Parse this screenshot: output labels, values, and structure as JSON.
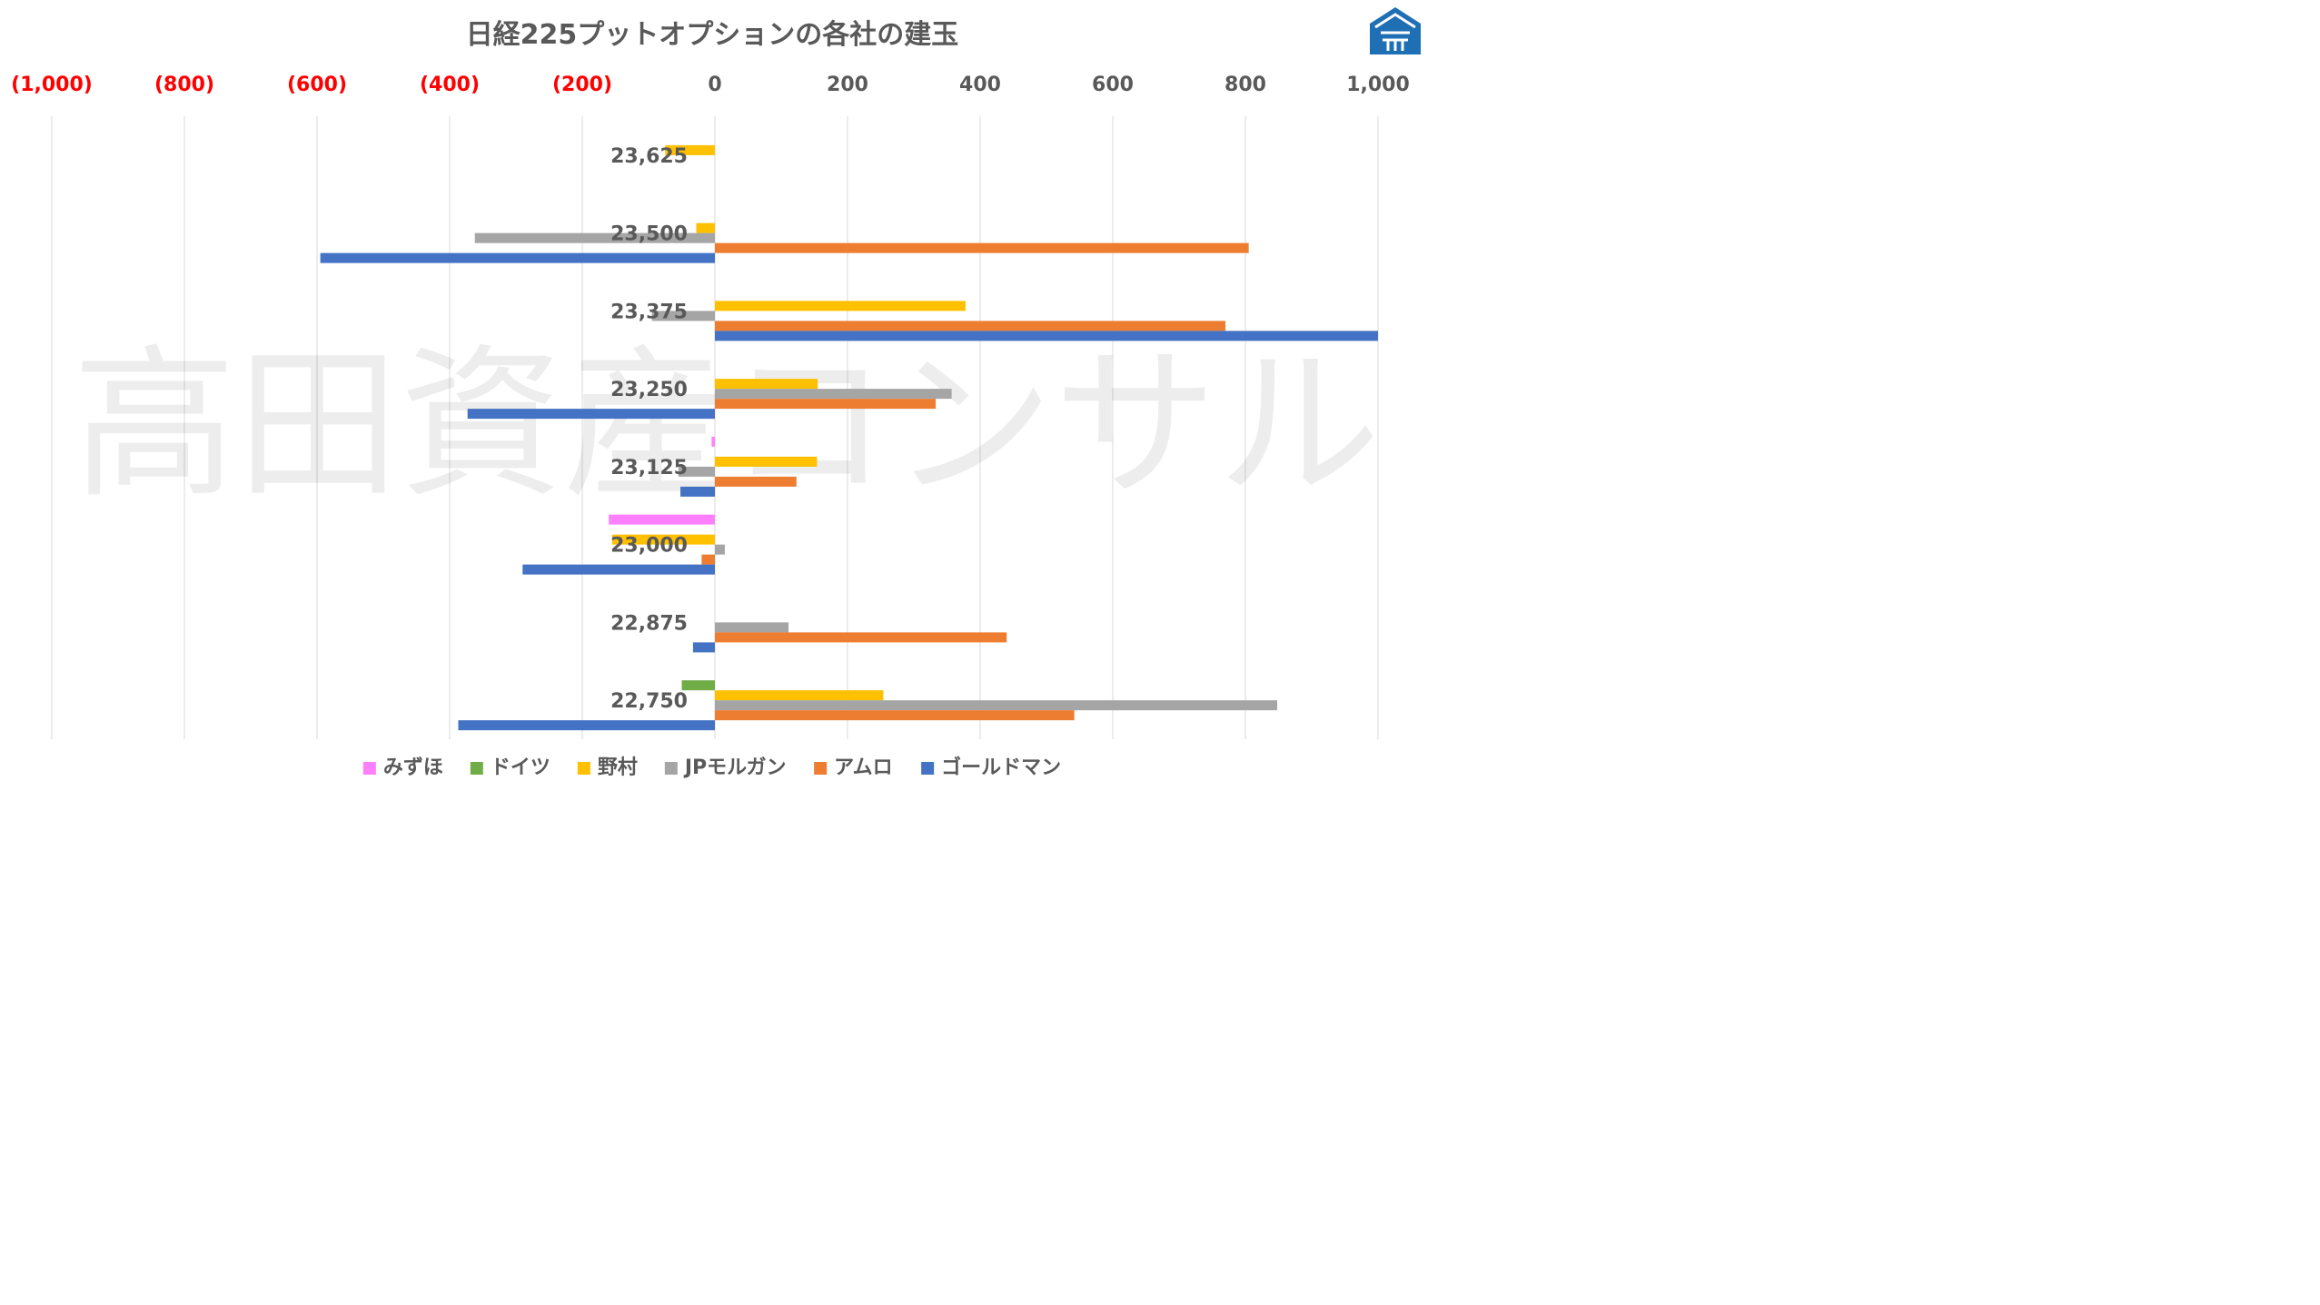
{
  "watermark": "高田資産コンサル",
  "chart_data": {
    "type": "bar",
    "orientation": "horizontal",
    "title": "日経225プットオプションの各社の建玉",
    "xlim": [
      -1000,
      1000
    ],
    "x_ticks": [
      {
        "value": -1000,
        "label": "(1,000)"
      },
      {
        "value": -800,
        "label": "(800)"
      },
      {
        "value": -600,
        "label": "(600)"
      },
      {
        "value": -400,
        "label": "(400)"
      },
      {
        "value": -200,
        "label": "(200)"
      },
      {
        "value": 0,
        "label": "0"
      },
      {
        "value": 200,
        "label": "200"
      },
      {
        "value": 400,
        "label": "400"
      },
      {
        "value": 600,
        "label": "600"
      },
      {
        "value": 800,
        "label": "800"
      },
      {
        "value": 1000,
        "label": "1,000"
      }
    ],
    "grid": true,
    "legend_position": "bottom",
    "categories": [
      "23,625",
      "23,500",
      "23,375",
      "23,250",
      "23,125",
      "23,000",
      "22,875",
      "22,750"
    ],
    "series": [
      {
        "name": "みずほ",
        "color": "#ff80ff",
        "values": [
          0,
          0,
          0,
          0,
          -5,
          -160,
          0,
          0
        ]
      },
      {
        "name": "ドイツ",
        "color": "#70ad47",
        "values": [
          0,
          0,
          0,
          0,
          0,
          0,
          0,
          -50
        ]
      },
      {
        "name": "野村",
        "color": "#ffc000",
        "values": [
          -75,
          -28,
          378,
          155,
          154,
          -155,
          0,
          254
        ]
      },
      {
        "name": "JPモルガン",
        "color": "#a5a5a5",
        "values": [
          0,
          -362,
          -95,
          357,
          -55,
          15,
          111,
          848
        ]
      },
      {
        "name": "アムロ",
        "color": "#ed7d31",
        "values": [
          0,
          805,
          770,
          333,
          123,
          -20,
          440,
          542
        ]
      },
      {
        "name": "ゴールドマン",
        "color": "#4472c4",
        "values": [
          0,
          -595,
          1000,
          -373,
          -52,
          -290,
          -33,
          -387
        ]
      }
    ]
  }
}
